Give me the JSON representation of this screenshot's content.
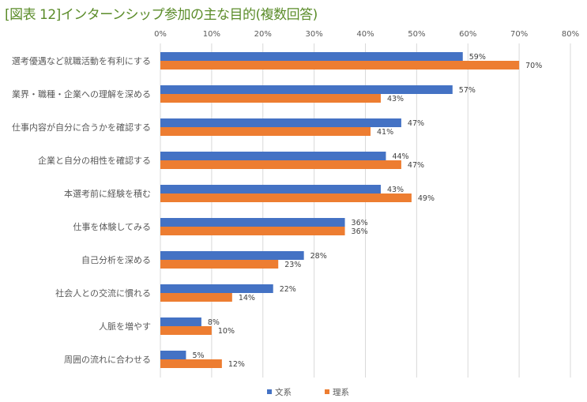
{
  "chart_data": {
    "type": "bar",
    "orientation": "horizontal",
    "title": "[図表 12]インターンシップ参加の主な目的(複数回答)",
    "categories": [
      "選考優遇など就職活動を有利にする",
      "業界・職種・企業への理解を深める",
      "仕事内容が自分に合うかを確認する",
      "企業と自分の相性を確認する",
      "本選考前に経験を積む",
      "仕事を体験してみる",
      "自己分析を深める",
      "社会人との交流に慣れる",
      "人脈を増やす",
      "周囲の流れに合わせる"
    ],
    "series": [
      {
        "name": "文系",
        "color": "#4472C4",
        "values": [
          59,
          57,
          47,
          44,
          43,
          36,
          28,
          22,
          8,
          5
        ]
      },
      {
        "name": "理系",
        "color": "#ED7D31",
        "values": [
          70,
          43,
          41,
          47,
          49,
          36,
          23,
          14,
          10,
          12
        ]
      }
    ],
    "xlim": [
      0,
      80
    ],
    "ticks": [
      "0%",
      "10%",
      "20%",
      "30%",
      "40%",
      "50%",
      "60%",
      "70%",
      "80%"
    ],
    "unit": "%",
    "grid": true,
    "legend": "bottom"
  }
}
